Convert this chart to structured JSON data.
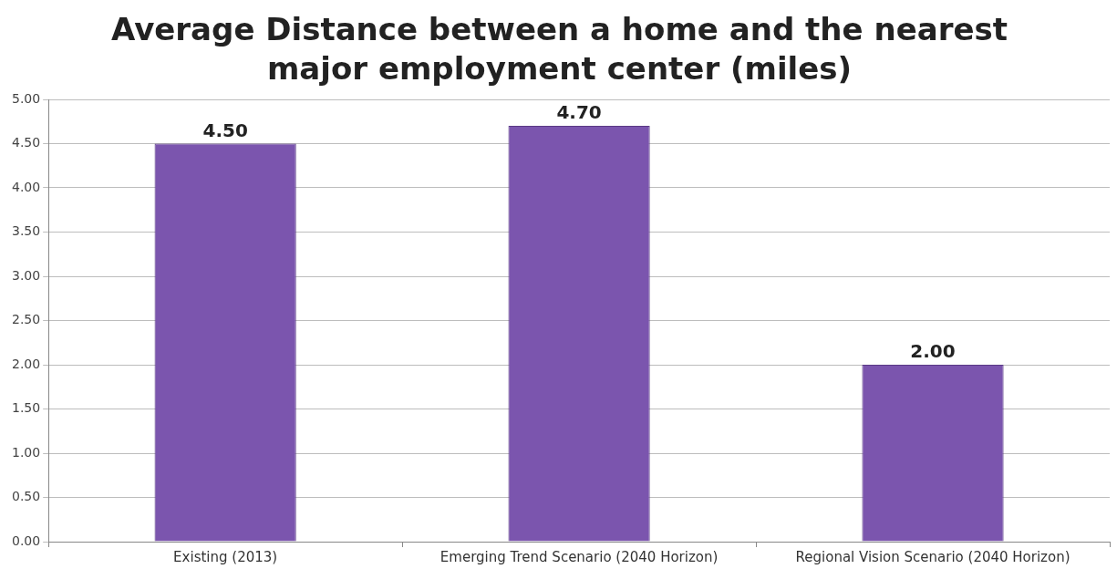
{
  "chart_data": {
    "type": "bar",
    "title": "Average Distance between a home and the nearest major employment center (miles)",
    "categories": [
      "Existing (2013)",
      "Emerging Trend Scenario (2040 Horizon)",
      "Regional Vision Scenario (2040 Horizon)"
    ],
    "values": [
      4.5,
      4.7,
      2.0
    ],
    "color": "#7b55ae",
    "value_labels": [
      "4.50",
      "4.70",
      "2.00"
    ],
    "ylim": [
      0,
      5
    ],
    "yticks": [
      {
        "value": 0,
        "label": "0.00"
      },
      {
        "value": 0.5,
        "label": "0.50"
      },
      {
        "value": 1,
        "label": "1.00"
      },
      {
        "value": 1.5,
        "label": "1.50"
      },
      {
        "value": 2,
        "label": "2.00"
      },
      {
        "value": 2.5,
        "label": "2.50"
      },
      {
        "value": 3,
        "label": "3.00"
      },
      {
        "value": 3.5,
        "label": "3.50"
      },
      {
        "value": 4,
        "label": "4.00"
      },
      {
        "value": 4.5,
        "label": "4.50"
      },
      {
        "value": 5,
        "label": "5.00"
      }
    ],
    "grid": "y",
    "legend": false
  }
}
